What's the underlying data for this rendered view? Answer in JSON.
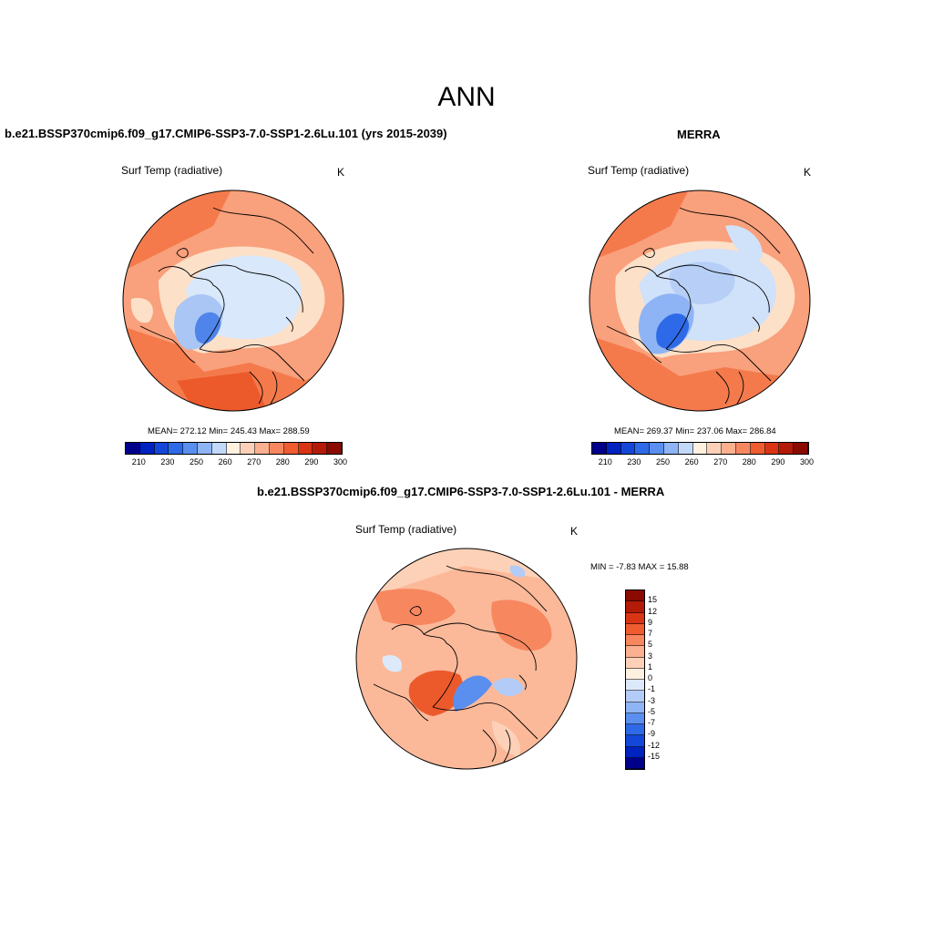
{
  "title": "ANN",
  "panels": {
    "model": {
      "title": "b.e21.BSSP370cmip6.f09_g17.CMIP6-SSP3-7.0-SSP1-2.6Lu.101 (yrs 2015-2039)",
      "var": "Surf Temp (radiative)",
      "units": "K",
      "stats": "MEAN= 272.12  Min= 245.43  Max= 288.59",
      "colorbar_ticks": [
        "210",
        "230",
        "250",
        "260",
        "270",
        "280",
        "290",
        "300"
      ]
    },
    "obs": {
      "title": "MERRA",
      "var": "Surf Temp (radiative)",
      "units": "K",
      "stats": "MEAN= 269.37  Min= 237.06  Max= 286.84",
      "colorbar_ticks": [
        "210",
        "230",
        "250",
        "260",
        "270",
        "280",
        "290",
        "300"
      ]
    },
    "diff": {
      "title": "b.e21.BSSP370cmip6.f09_g17.CMIP6-SSP3-7.0-SSP1-2.6Lu.101 - MERRA",
      "var": "Surf Temp (radiative)",
      "units": "K",
      "stats": "MIN =  -7.83 MAX =  15.88",
      "colorbar_ticks": [
        "15",
        "12",
        "9",
        "7",
        "5",
        "3",
        "1",
        "0",
        "-1",
        "-3",
        "-5",
        "-7",
        "-9",
        "-12",
        "-15"
      ]
    }
  },
  "colors": {
    "abs_scale": [
      "#00008b",
      "#0022c0",
      "#1447d8",
      "#2e6ae8",
      "#5a8ff0",
      "#8fb4f5",
      "#c3d9fa",
      "#fff0e0",
      "#fdd1b8",
      "#fbb08f",
      "#f7875f",
      "#ef5c30",
      "#d93515",
      "#b31b08",
      "#8b0a00"
    ],
    "diff_scale": [
      "#8b0a00",
      "#b31b08",
      "#d93515",
      "#ef5c30",
      "#f7875f",
      "#fbb08f",
      "#fdd1b8",
      "#fff0e0",
      "#dce9fb",
      "#b3ccf7",
      "#8fb4f5",
      "#5a8ff0",
      "#2e6ae8",
      "#1447d8",
      "#0022c0",
      "#00008b"
    ]
  }
}
